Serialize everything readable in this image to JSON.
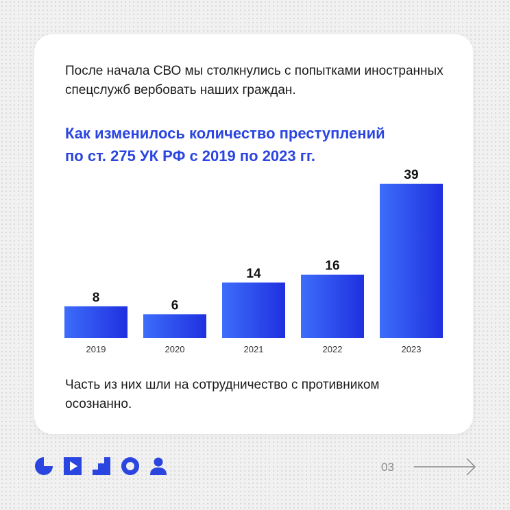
{
  "card": {
    "intro": "После начала СВО мы столкнулись с попытками иностранных спецслужб вербовать наших граждан.",
    "heading_line1": "Как изменилось количество преступлений",
    "heading_line2": "по ст. 275 УК РФ с 2019 по 2023 гг.",
    "outro": "Часть из них шли на сотрудничество с противником осознанно."
  },
  "chart_data": {
    "type": "bar",
    "categories": [
      "2019",
      "2020",
      "2021",
      "2022",
      "2023"
    ],
    "values": [
      8,
      6,
      14,
      16,
      39
    ],
    "title": "Как изменилось количество преступлений по ст. 275 УК РФ с 2019 по 2023 гг.",
    "xlabel": "",
    "ylabel": "",
    "ylim": [
      0,
      39
    ],
    "grid": false,
    "legend": "none",
    "bar_gradient": [
      "#3d6dfa",
      "#1f30e0"
    ]
  },
  "footer": {
    "page_number": "03",
    "icons": [
      "pie-icon",
      "play-icon",
      "stairs-icon",
      "ring-icon",
      "person-icon"
    ],
    "accent_color": "#2a45e0"
  }
}
